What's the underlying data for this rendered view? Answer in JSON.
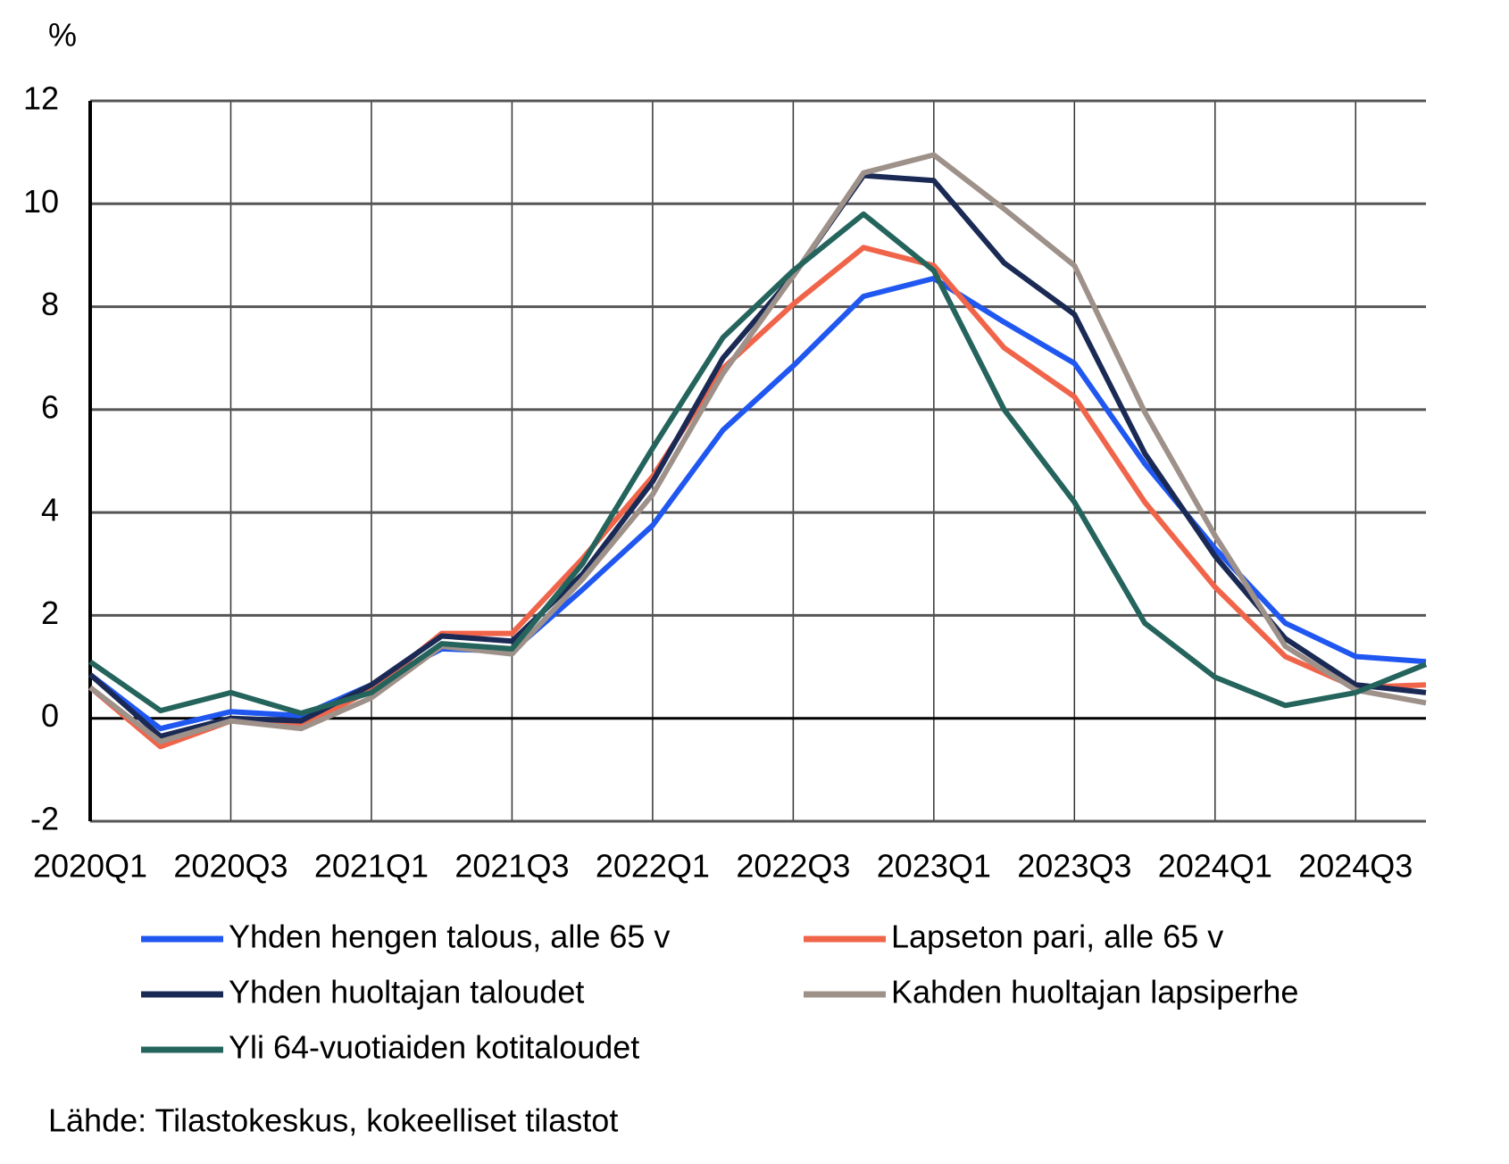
{
  "chart_data": {
    "type": "line",
    "y_label": "%",
    "source": "Lähde: Tilastokeskus, kokeelliset tilastot",
    "categories": [
      "2020Q1",
      null,
      "2020Q3",
      null,
      "2021Q1",
      null,
      "2021Q3",
      null,
      "2022Q1",
      null,
      "2022Q3",
      null,
      "2023Q1",
      null,
      "2023Q3",
      null,
      "2024Q1",
      null,
      "2024Q3",
      null
    ],
    "ylim": [
      -2,
      12
    ],
    "yticks": [
      -2,
      0,
      2,
      4,
      6,
      8,
      10,
      12
    ],
    "grid": true,
    "legend": "bottom",
    "series": [
      {
        "name": "Yhden hengen talous, alle 65 v",
        "color": "#1f57f0",
        "values": [
          0.85,
          -0.2,
          0.13,
          0.05,
          0.65,
          1.35,
          1.3,
          2.5,
          3.75,
          5.6,
          6.85,
          8.2,
          8.55,
          7.7,
          6.9,
          4.95,
          3.3,
          1.85,
          1.2,
          1.1
        ]
      },
      {
        "name": "Lapseton pari, alle 65 v",
        "color": "#f0654a",
        "values": [
          0.6,
          -0.55,
          -0.05,
          -0.15,
          0.55,
          1.65,
          1.65,
          3.1,
          4.7,
          6.8,
          8.05,
          9.15,
          8.8,
          7.2,
          6.25,
          4.2,
          2.55,
          1.2,
          0.6,
          0.65
        ]
      },
      {
        "name": "Yhden huoltajan taloudet",
        "color": "#1b2a55",
        "values": [
          0.85,
          -0.35,
          0.0,
          -0.05,
          0.65,
          1.6,
          1.5,
          2.8,
          4.6,
          7.0,
          8.6,
          10.55,
          10.45,
          8.85,
          7.85,
          5.15,
          3.15,
          1.55,
          0.65,
          0.5
        ]
      },
      {
        "name": "Kahden huoltajan lapsiperhe",
        "color": "#9e918a",
        "values": [
          0.6,
          -0.45,
          -0.05,
          -0.2,
          0.4,
          1.4,
          1.25,
          2.7,
          4.35,
          6.7,
          8.6,
          10.6,
          10.95,
          9.9,
          8.8,
          5.95,
          3.55,
          1.4,
          0.55,
          0.3
        ]
      },
      {
        "name": "Yli 64-vuotiaiden kotitaloudet",
        "color": "#24645c",
        "values": [
          1.1,
          0.15,
          0.5,
          0.1,
          0.5,
          1.45,
          1.35,
          3.0,
          5.25,
          7.4,
          8.7,
          9.8,
          8.7,
          6.0,
          4.2,
          1.85,
          0.8,
          0.25,
          0.5,
          1.05
        ]
      }
    ]
  }
}
